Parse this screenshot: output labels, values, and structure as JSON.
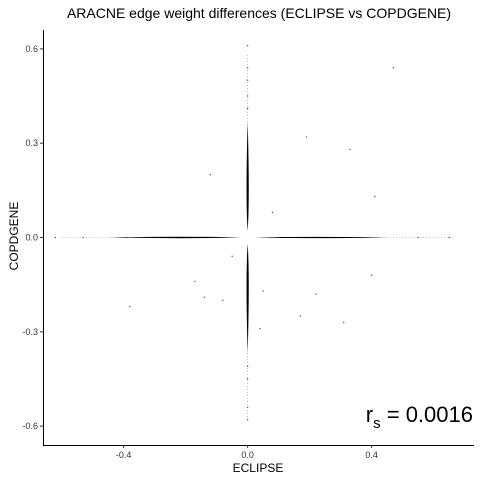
{
  "chart_data": {
    "type": "scatter",
    "title": "ARACNE edge weight differences (ECLIPSE vs COPDGENE)",
    "xlabel": "ECLIPSE",
    "ylabel": "COPDGENE",
    "xlim": [
      -0.66,
      0.73
    ],
    "ylim": [
      -0.66,
      0.66
    ],
    "xticks": [
      -0.4,
      0.0,
      0.4
    ],
    "xtick_labels": [
      "-0.4",
      "0.0",
      "0.4"
    ],
    "yticks": [
      0.6,
      0.3,
      0.0,
      -0.3,
      -0.6
    ],
    "ytick_labels": [
      "0.6",
      "0.3",
      "0.0",
      "-0.3",
      "-0.6"
    ],
    "grid": false,
    "point_color": "#000000",
    "annotation": {
      "base": "r",
      "subscript": "s",
      "text": " = 0.0016",
      "position": "bottom-right"
    },
    "points": [
      {
        "x": 0.0,
        "y": 0.61
      },
      {
        "x": 0.0,
        "y": 0.54
      },
      {
        "x": 0.0,
        "y": 0.5
      },
      {
        "x": 0.0,
        "y": 0.45
      },
      {
        "x": 0.0,
        "y": 0.41
      },
      {
        "x": 0.0,
        "y": -0.41
      },
      {
        "x": 0.0,
        "y": -0.45
      },
      {
        "x": 0.0,
        "y": -0.54
      },
      {
        "x": 0.0,
        "y": -0.58
      },
      {
        "x": -0.62,
        "y": 0.0
      },
      {
        "x": -0.53,
        "y": 0.0
      },
      {
        "x": 0.55,
        "y": 0.0
      },
      {
        "x": 0.65,
        "y": 0.0
      },
      {
        "x": 0.47,
        "y": 0.54
      },
      {
        "x": 0.19,
        "y": 0.32
      },
      {
        "x": 0.33,
        "y": 0.28
      },
      {
        "x": 0.41,
        "y": 0.13
      },
      {
        "x": -0.12,
        "y": 0.2
      },
      {
        "x": -0.17,
        "y": -0.14
      },
      {
        "x": -0.14,
        "y": -0.19
      },
      {
        "x": -0.08,
        "y": -0.2
      },
      {
        "x": 0.05,
        "y": -0.17
      },
      {
        "x": 0.22,
        "y": -0.18
      },
      {
        "x": 0.17,
        "y": -0.25
      },
      {
        "x": 0.31,
        "y": -0.27
      },
      {
        "x": 0.4,
        "y": -0.12
      },
      {
        "x": 0.04,
        "y": -0.29
      },
      {
        "x": -0.38,
        "y": -0.22
      },
      {
        "x": 0.08,
        "y": 0.08
      },
      {
        "x": -0.05,
        "y": -0.06
      }
    ]
  }
}
